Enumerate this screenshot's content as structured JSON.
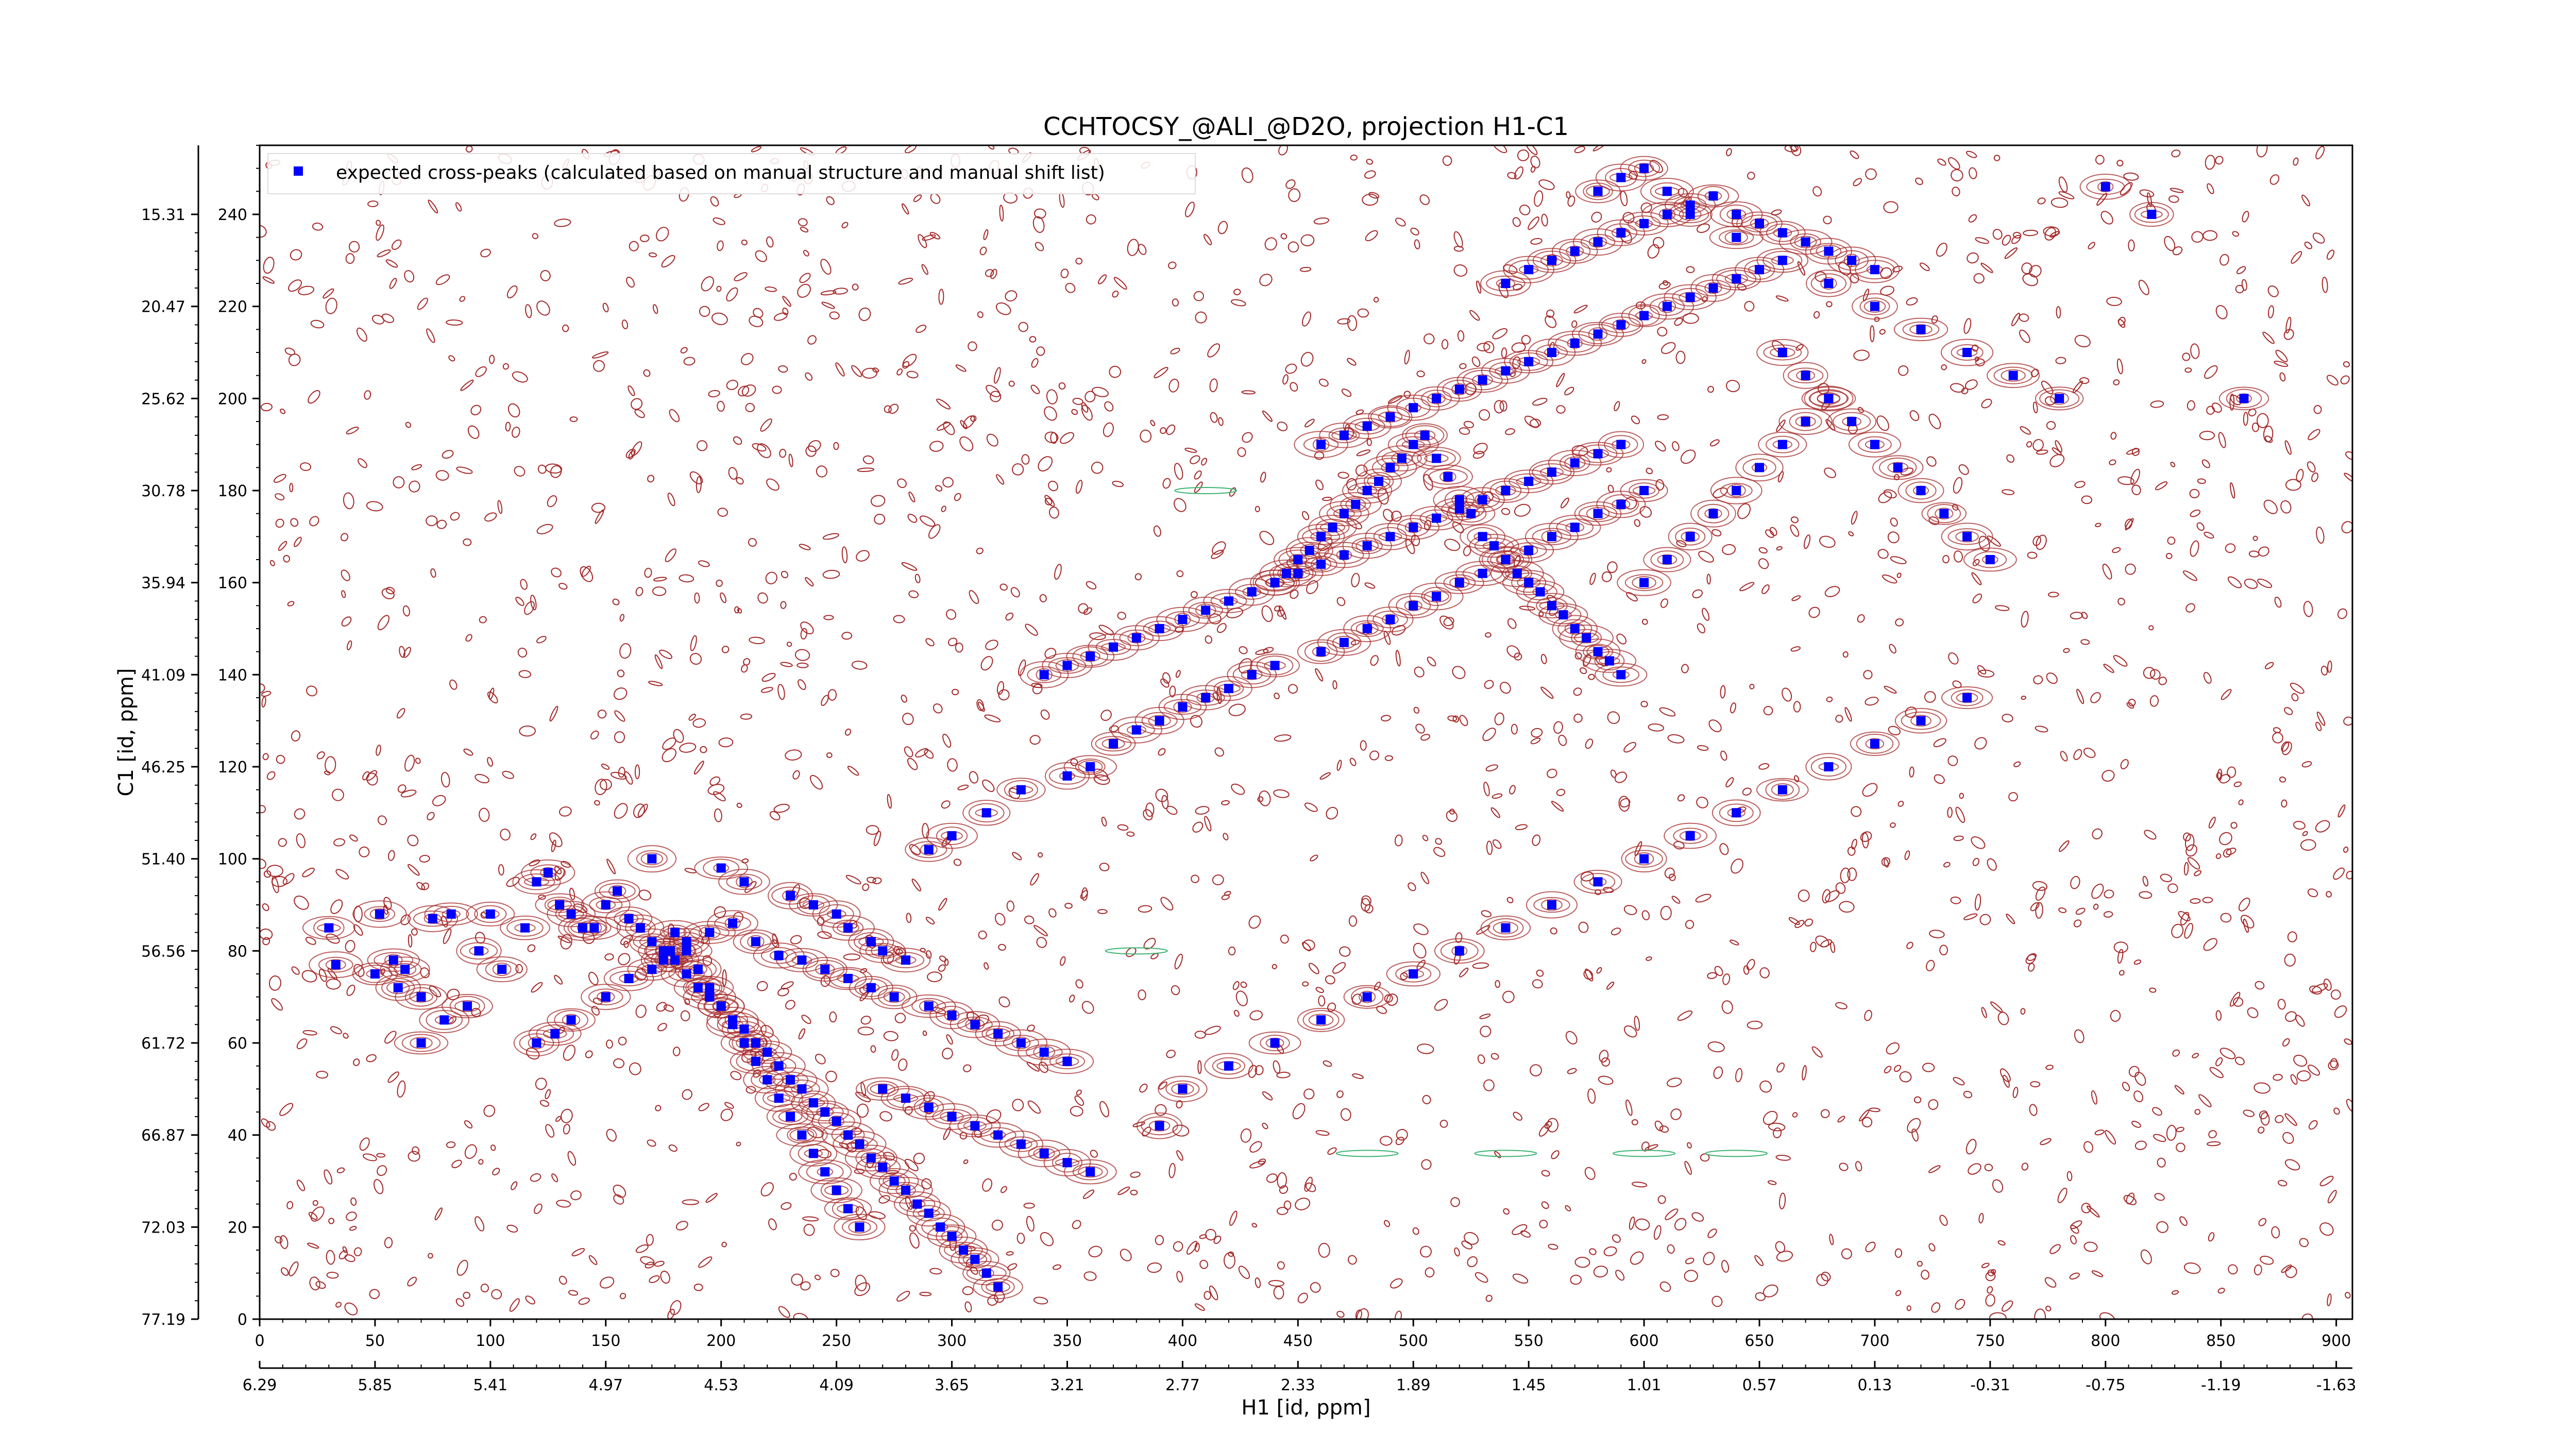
{
  "chart_data": {
    "type": "scatter",
    "title": "CCHTOCSY_@ALI_@D2O, projection H1-C1",
    "xlabel": "H1 [id, ppm]",
    "ylabel": "C1 [id, ppm]",
    "x_index_range": [
      0,
      907
    ],
    "y_index_range": [
      0,
      255
    ],
    "x_index_ticks": [
      "0",
      "50",
      "100",
      "150",
      "200",
      "250",
      "300",
      "350",
      "400",
      "450",
      "500",
      "550",
      "600",
      "650",
      "700",
      "750",
      "800",
      "850",
      "900"
    ],
    "x_ppm_ticks": [
      "6.29",
      "5.85",
      "5.41",
      "4.97",
      "4.53",
      "4.09",
      "3.65",
      "3.21",
      "2.77",
      "2.33",
      "1.89",
      "1.45",
      "1.01",
      "0.57",
      "0.13",
      "-0.31",
      "-0.75",
      "-1.19",
      "-1.63"
    ],
    "y_index_ticks": [
      "0",
      "20",
      "40",
      "60",
      "80",
      "100",
      "120",
      "140",
      "160",
      "180",
      "200",
      "220",
      "240"
    ],
    "y_ppm_ticks": [
      "77.19",
      "72.03",
      "66.87",
      "61.72",
      "56.56",
      "51.40",
      "46.25",
      "41.09",
      "35.94",
      "30.78",
      "25.62",
      "20.47",
      "15.31"
    ],
    "grid": false,
    "legend_position": "top-left",
    "colors": {
      "peaks": "#0000ff",
      "positive_contours": "#a52a2a",
      "negative_contours": "#3cb371"
    },
    "series": [
      {
        "name": "expected cross-peaks (calculated based on manual structure and manual shift list)",
        "marker": "square",
        "x": [
          30,
          33,
          52,
          58,
          63,
          70,
          75,
          83,
          95,
          100,
          105,
          115,
          120,
          125,
          130,
          135,
          140,
          145,
          150,
          155,
          160,
          165,
          170,
          175,
          180,
          185,
          190,
          195,
          200,
          205,
          210,
          215,
          220,
          225,
          230,
          235,
          240,
          245,
          250,
          255,
          260,
          265,
          270,
          275,
          280,
          285,
          290,
          295,
          300,
          305,
          310,
          315,
          320,
          175,
          180,
          185,
          190,
          195,
          200,
          205,
          210,
          215,
          220,
          225,
          230,
          235,
          240,
          245,
          250,
          255,
          260,
          120,
          128,
          135,
          150,
          160,
          170,
          178,
          185,
          195,
          205,
          215,
          225,
          235,
          245,
          255,
          265,
          275,
          290,
          300,
          310,
          320,
          330,
          340,
          350,
          50,
          60,
          70,
          80,
          90,
          170,
          200,
          210,
          230,
          240,
          250,
          255,
          265,
          270,
          280,
          290,
          300,
          315,
          330,
          350,
          360,
          370,
          380,
          390,
          400,
          410,
          420,
          430,
          440,
          460,
          470,
          480,
          490,
          500,
          510,
          520,
          530,
          540,
          550,
          560,
          570,
          580,
          590,
          600,
          340,
          350,
          360,
          370,
          380,
          390,
          400,
          410,
          420,
          430,
          440,
          450,
          460,
          470,
          480,
          490,
          500,
          510,
          520,
          530,
          540,
          550,
          560,
          570,
          580,
          590,
          440,
          445,
          450,
          455,
          460,
          465,
          470,
          475,
          480,
          485,
          490,
          495,
          500,
          505,
          510,
          515,
          520,
          525,
          530,
          535,
          540,
          545,
          550,
          555,
          560,
          565,
          570,
          575,
          580,
          585,
          590,
          600,
          610,
          620,
          630,
          640,
          650,
          660,
          670,
          680,
          460,
          470,
          480,
          490,
          500,
          510,
          520,
          530,
          540,
          550,
          560,
          570,
          580,
          590,
          600,
          610,
          620,
          630,
          640,
          650,
          660,
          670,
          680,
          690,
          700,
          710,
          720,
          730,
          740,
          750,
          540,
          550,
          560,
          570,
          580,
          590,
          600,
          610,
          620,
          630,
          640,
          650,
          660,
          670,
          680,
          690,
          700,
          580,
          590,
          600,
          610,
          620,
          640,
          660,
          680,
          700,
          720,
          740,
          760,
          780,
          800,
          820,
          860,
          270,
          280,
          290,
          300,
          310,
          320,
          330,
          340,
          350,
          360,
          390,
          400,
          420,
          440,
          460,
          480,
          500,
          520,
          540,
          560,
          580,
          600,
          620,
          640,
          660,
          680,
          700,
          720,
          740
        ],
        "y": [
          85,
          77,
          88,
          78,
          76,
          70,
          87,
          88,
          80,
          88,
          76,
          85,
          95,
          97,
          90,
          88,
          85,
          85,
          90,
          93,
          87,
          85,
          82,
          80,
          78,
          75,
          72,
          70,
          68,
          65,
          63,
          60,
          58,
          55,
          52,
          50,
          47,
          45,
          43,
          40,
          38,
          35,
          33,
          30,
          28,
          25,
          23,
          20,
          18,
          15,
          13,
          10,
          7,
          78,
          84,
          80,
          76,
          72,
          68,
          64,
          60,
          56,
          52,
          48,
          44,
          40,
          36,
          32,
          28,
          24,
          20,
          60,
          62,
          65,
          70,
          74,
          76,
          80,
          82,
          84,
          86,
          82,
          79,
          78,
          76,
          74,
          72,
          70,
          68,
          66,
          64,
          62,
          60,
          58,
          56,
          75,
          72,
          60,
          65,
          68,
          100,
          98,
          95,
          92,
          90,
          88,
          85,
          82,
          80,
          78,
          102,
          105,
          110,
          115,
          118,
          120,
          125,
          128,
          130,
          133,
          135,
          137,
          140,
          142,
          145,
          147,
          150,
          152,
          155,
          157,
          160,
          162,
          165,
          167,
          170,
          172,
          175,
          177,
          180,
          140,
          142,
          144,
          146,
          148,
          150,
          152,
          154,
          156,
          158,
          160,
          162,
          164,
          166,
          168,
          170,
          172,
          174,
          176,
          178,
          180,
          182,
          184,
          186,
          188,
          190,
          160,
          162,
          165,
          167,
          170,
          172,
          175,
          177,
          180,
          182,
          185,
          187,
          190,
          192,
          187,
          183,
          178,
          175,
          170,
          168,
          165,
          162,
          160,
          158,
          155,
          153,
          150,
          148,
          145,
          143,
          140,
          160,
          165,
          170,
          175,
          180,
          185,
          190,
          195,
          200,
          190,
          192,
          194,
          196,
          198,
          200,
          202,
          204,
          206,
          208,
          210,
          212,
          214,
          216,
          218,
          220,
          222,
          224,
          226,
          228,
          210,
          205,
          200,
          195,
          190,
          185,
          180,
          175,
          170,
          165,
          225,
          228,
          230,
          232,
          234,
          236,
          238,
          240,
          242,
          244,
          240,
          238,
          236,
          234,
          232,
          230,
          228,
          245,
          248,
          250,
          245,
          240,
          235,
          230,
          225,
          220,
          215,
          210,
          205,
          200,
          246,
          240,
          200,
          50,
          48,
          46,
          44,
          42,
          40,
          38,
          36,
          34,
          32,
          42,
          50,
          55,
          60,
          65,
          70,
          75,
          80,
          85,
          90,
          95,
          100,
          105,
          110,
          115,
          120,
          125,
          130,
          135
        ]
      }
    ]
  }
}
